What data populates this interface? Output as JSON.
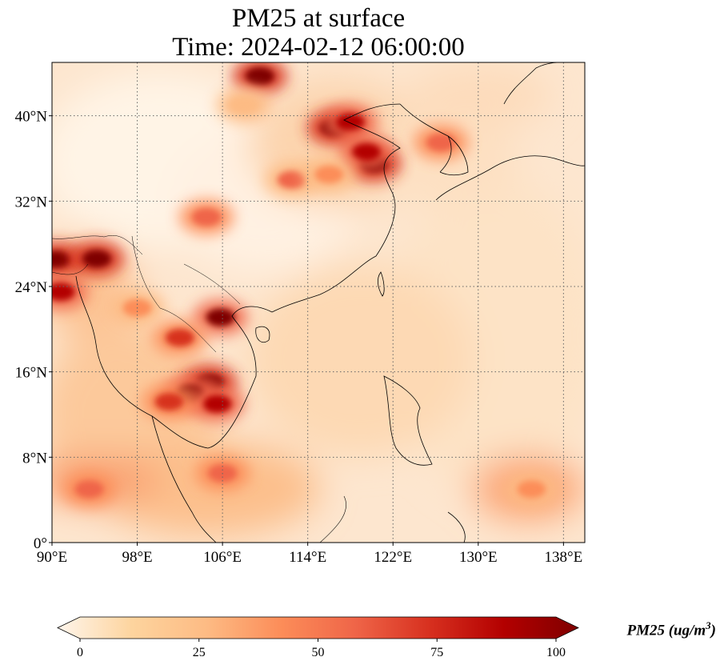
{
  "title": {
    "line1": "PM25 at surface",
    "line2": "Time: 2024-02-12 06:00:00"
  },
  "map": {
    "lon_range": [
      90,
      140
    ],
    "lat_range": [
      0,
      45
    ],
    "lon_ticks": [
      {
        "value": 90,
        "label": "90°E"
      },
      {
        "value": 98,
        "label": "98°E"
      },
      {
        "value": 106,
        "label": "106°E"
      },
      {
        "value": 114,
        "label": "114°E"
      },
      {
        "value": 122,
        "label": "122°E"
      },
      {
        "value": 130,
        "label": "130°E"
      },
      {
        "value": 138,
        "label": "138°E"
      }
    ],
    "lat_ticks": [
      {
        "value": 0,
        "label": "0°"
      },
      {
        "value": 8,
        "label": "8°N"
      },
      {
        "value": 16,
        "label": "16°N"
      },
      {
        "value": 24,
        "label": "24°N"
      },
      {
        "value": 32,
        "label": "32°N"
      },
      {
        "value": 40,
        "label": "40°N"
      }
    ],
    "gridlines": true,
    "hotspots": [
      {
        "lon": 109.5,
        "lat": 43.7,
        "value": 100
      },
      {
        "lon": 116.5,
        "lat": 38.9,
        "value": 100
      },
      {
        "lon": 118.0,
        "lat": 39.4,
        "value": 90
      },
      {
        "lon": 120.2,
        "lat": 35.5,
        "value": 100
      },
      {
        "lon": 119.5,
        "lat": 36.6,
        "value": 80
      },
      {
        "lon": 104.8,
        "lat": 15.0,
        "value": 100
      },
      {
        "lon": 103.0,
        "lat": 14.0,
        "value": 95
      },
      {
        "lon": 105.5,
        "lat": 13.0,
        "value": 85
      },
      {
        "lon": 101.0,
        "lat": 13.2,
        "value": 75
      },
      {
        "lon": 90.4,
        "lat": 26.5,
        "value": 100
      },
      {
        "lon": 94.2,
        "lat": 26.6,
        "value": 100
      },
      {
        "lon": 90.8,
        "lat": 23.5,
        "value": 80
      },
      {
        "lon": 105.8,
        "lat": 21.1,
        "value": 95
      },
      {
        "lon": 102.0,
        "lat": 19.2,
        "value": 65
      },
      {
        "lon": 93.5,
        "lat": 5.0,
        "value": 55
      },
      {
        "lon": 106.0,
        "lat": 6.5,
        "value": 60
      },
      {
        "lon": 104.5,
        "lat": 30.5,
        "value": 60
      },
      {
        "lon": 112.5,
        "lat": 34.0,
        "value": 50
      },
      {
        "lon": 116.0,
        "lat": 34.5,
        "value": 45
      },
      {
        "lon": 126.5,
        "lat": 37.5,
        "value": 55
      },
      {
        "lon": 108.0,
        "lat": 41.0,
        "value": 35
      },
      {
        "lon": 98.0,
        "lat": 22.0,
        "value": 45
      },
      {
        "lon": 135.0,
        "lat": 5.0,
        "value": 40
      }
    ]
  },
  "colorbar": {
    "min": 0,
    "max": 100,
    "ticks": [
      0,
      25,
      50,
      75,
      100
    ],
    "colors": [
      "#fff5eb",
      "#fdd49e",
      "#fdbb84",
      "#fc8d59",
      "#ef6548",
      "#d7301f",
      "#b30000",
      "#7f0000"
    ],
    "label": "PM25 (ug/m",
    "label_sup": "3",
    "label_end": ")",
    "extend": "both"
  }
}
